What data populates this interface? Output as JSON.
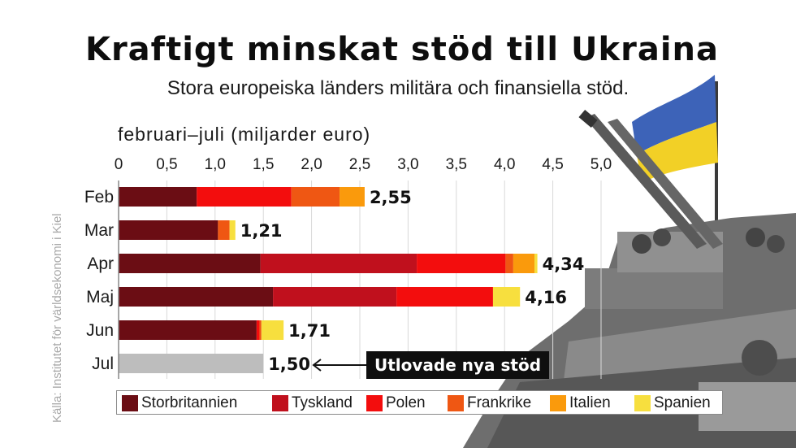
{
  "title": "Kraftigt minskat stöd till Ukraina",
  "subtitle": "Stora europeiska länders militära och finansiella stöd.",
  "period_label": "februari–juli (miljarder euro)",
  "source": "Källa: Institutet för världsekonomi i Kiel",
  "callout": "Utlovade nya stöd",
  "colors": {
    "Storbritannien": "#6b0d14",
    "Tyskland": "#c0101d",
    "Polen": "#f30d0d",
    "Frankrike": "#ef5713",
    "Italien": "#fa9a0c",
    "Spanien": "#f7df3e",
    "promised": "#bdbdbd"
  },
  "chart_data": {
    "type": "bar",
    "orientation": "horizontal",
    "stacked": true,
    "categories": [
      "Feb",
      "Mar",
      "Apr",
      "Maj",
      "Jun",
      "Jul"
    ],
    "xlim": [
      0,
      5.0
    ],
    "xticks": [
      "0",
      "0,5",
      "1,0",
      "1,5",
      "2,0",
      "2,5",
      "3,0",
      "3,5",
      "4,0",
      "4,5",
      "5,0"
    ],
    "xtick_values": [
      0,
      0.5,
      1.0,
      1.5,
      2.0,
      2.5,
      3.0,
      3.5,
      4.0,
      4.5,
      5.0
    ],
    "grid": true,
    "legend_position": "bottom",
    "series": [
      {
        "name": "Storbritannien",
        "values": [
          0.81,
          1.03,
          1.47,
          1.6,
          1.43,
          0
        ]
      },
      {
        "name": "Tyskland",
        "values": [
          0,
          0,
          1.62,
          1.28,
          0,
          0
        ]
      },
      {
        "name": "Polen",
        "values": [
          0.98,
          0,
          0.92,
          1.0,
          0.03,
          0
        ]
      },
      {
        "name": "Frankrike",
        "values": [
          0.5,
          0.12,
          0.08,
          0,
          0.02,
          0
        ]
      },
      {
        "name": "Italien",
        "values": [
          0.26,
          0,
          0.22,
          0,
          0,
          0
        ]
      },
      {
        "name": "Spanien",
        "values": [
          0,
          0.06,
          0.03,
          0.28,
          0.23,
          0
        ]
      }
    ],
    "promised": {
      "category": "Jul",
      "value": 1.5
    },
    "totals": [
      2.55,
      1.21,
      4.34,
      4.16,
      1.71,
      1.5
    ],
    "total_labels": [
      "2,55",
      "1,21",
      "4,34",
      "4,16",
      "1,71",
      "1,50"
    ]
  }
}
